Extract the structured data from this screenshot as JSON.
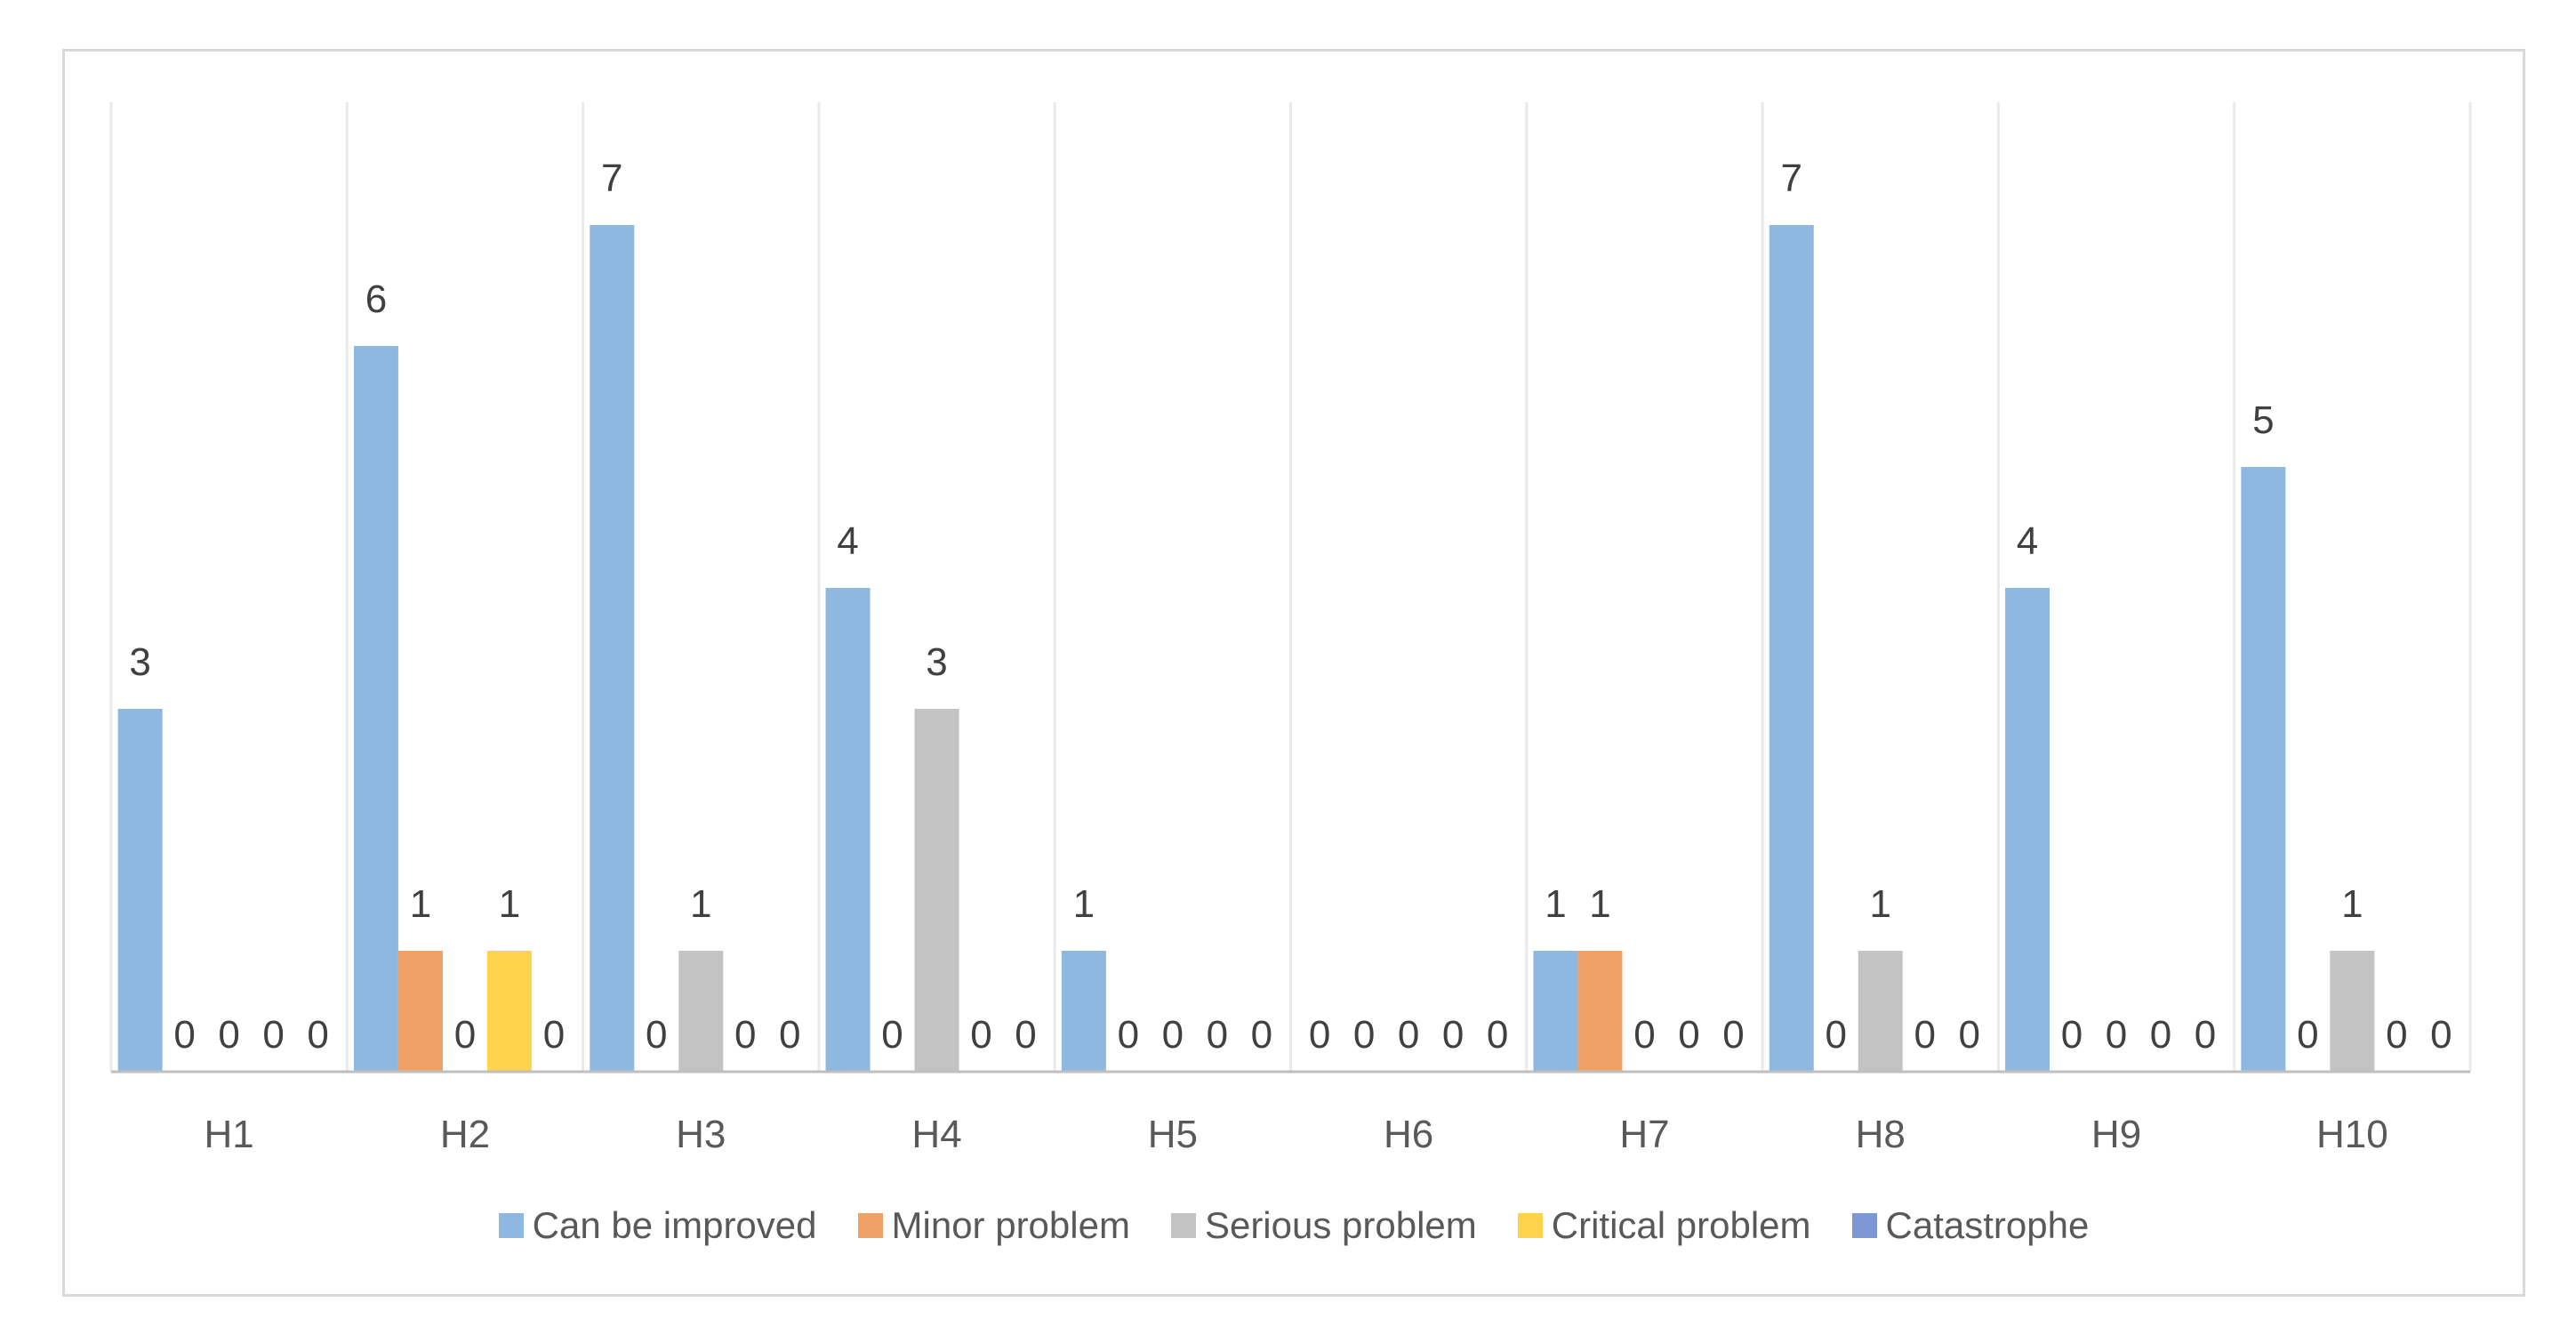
{
  "chart_data": {
    "type": "bar",
    "title": "",
    "xlabel": "",
    "ylabel": "",
    "categories": [
      "H1",
      "H2",
      "H3",
      "H4",
      "H5",
      "H6",
      "H7",
      "H8",
      "H9",
      "H10"
    ],
    "series": [
      {
        "name": "Can be improved",
        "color": "#8FB8E0",
        "values": [
          3,
          6,
          7,
          4,
          1,
          0,
          1,
          7,
          4,
          5
        ]
      },
      {
        "name": "Minor problem",
        "color": "#F0A266",
        "values": [
          0,
          1,
          0,
          0,
          0,
          0,
          1,
          0,
          0,
          0
        ]
      },
      {
        "name": "Serious problem",
        "color": "#C4C3C3",
        "values": [
          0,
          0,
          1,
          3,
          0,
          0,
          0,
          1,
          0,
          1
        ]
      },
      {
        "name": "Critical problem",
        "color": "#FFD34D",
        "values": [
          0,
          1,
          0,
          0,
          0,
          0,
          0,
          0,
          0,
          0
        ]
      },
      {
        "name": "Catastrophe",
        "color": "#7D97D5",
        "values": [
          0,
          0,
          0,
          0,
          0,
          0,
          0,
          0,
          0,
          0
        ]
      }
    ],
    "ylim": [
      0,
      8
    ],
    "y_axis_labels_visible": false,
    "grid": "vertical-category-separators",
    "legend_position": "bottom",
    "data_labels": true
  },
  "style": {
    "frame_border_color": "#D9D9D9",
    "background_color": "#FFFFFF",
    "gridline_color": "#EAEAEA",
    "axis_line_color": "#BFBFBF",
    "data_label_color": "#404040",
    "category_label_color": "#595959",
    "legend_text_color": "#595959"
  }
}
